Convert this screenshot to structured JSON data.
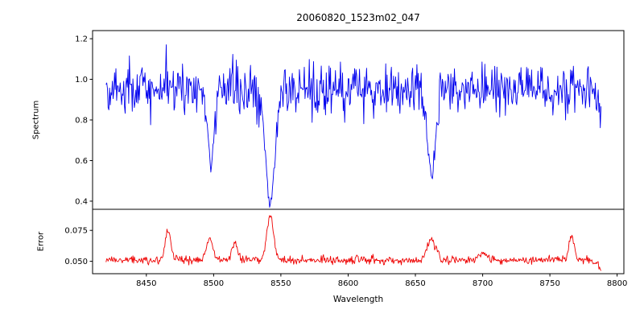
{
  "chart_data": {
    "type": "line",
    "title": "20060820_1523m02_047",
    "xlabel": "Wavelength",
    "xlim": [
      8410,
      8805
    ],
    "x_range": [
      8420,
      8788
    ],
    "xticks": [
      8450,
      8500,
      8550,
      8600,
      8650,
      8700,
      8750,
      8800
    ],
    "xtick_labels": [
      "8450",
      "8500",
      "8550",
      "8600",
      "8650",
      "8700",
      "8750",
      "8800"
    ],
    "n_points": 700,
    "seed": 42,
    "grid": false,
    "legend": "none",
    "panels": [
      {
        "ylabel": "Spectrum",
        "color": "#0000ee",
        "ylim": [
          0.36,
          1.24
        ],
        "ytick_values": [
          0.4,
          0.6,
          0.8,
          1.0,
          1.2
        ],
        "ytick_labels": [
          "0.4",
          "0.6",
          "0.8",
          "1.0",
          "1.2"
        ],
        "baseline": 0.95,
        "noise_sigma": 0.062,
        "clip": [
          0.37,
          1.235
        ],
        "absorption_lines": [
          {
            "center": 8498,
            "depth": 0.36,
            "width": 2.6
          },
          {
            "center": 8542,
            "depth": 0.56,
            "width": 3.4
          },
          {
            "center": 8662,
            "depth": 0.43,
            "width": 3.0
          }
        ],
        "end_taper": {
          "start": 8783,
          "slope": 0.03
        }
      },
      {
        "ylabel": "Error",
        "color": "#ee0000",
        "ylim": [
          0.04,
          0.092
        ],
        "ytick_values": [
          0.05,
          0.075
        ],
        "ytick_labels": [
          "0.050",
          "0.075"
        ],
        "baseline": 0.051,
        "noise_sigma": 0.0016,
        "clip": [
          0.041,
          0.091
        ],
        "peaks": [
          {
            "center": 8466,
            "height": 0.024,
            "width": 2.0
          },
          {
            "center": 8497,
            "height": 0.016,
            "width": 2.5
          },
          {
            "center": 8516,
            "height": 0.015,
            "width": 2.0
          },
          {
            "center": 8542,
            "height": 0.037,
            "width": 2.5
          },
          {
            "center": 8662,
            "height": 0.018,
            "width": 3.0
          },
          {
            "center": 8700,
            "height": 0.006,
            "width": 3.0
          },
          {
            "center": 8766,
            "height": 0.021,
            "width": 2.0
          }
        ],
        "end_taper": {
          "start": 8780,
          "slope": 0.0007
        }
      }
    ]
  }
}
